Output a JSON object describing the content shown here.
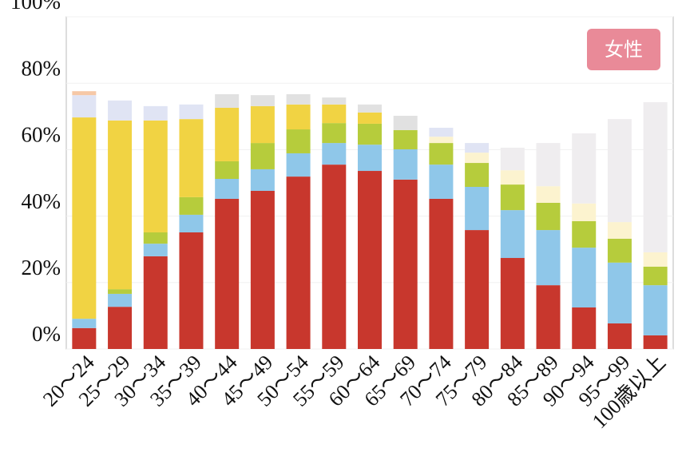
{
  "chart_data": {
    "type": "stacked_bar",
    "annotation": "女性",
    "categories": [
      "20～24",
      "25～29",
      "30～34",
      "35～39",
      "40～44",
      "45～49",
      "50～54",
      "55～59",
      "60～64",
      "65～69",
      "70～74",
      "75～79",
      "80～84",
      "85～89",
      "90～94",
      "95～99",
      "100歳以上"
    ],
    "series": [
      {
        "color": "#c8372d",
        "values": [
          6.3,
          12.7,
          27.9,
          35.1,
          45.2,
          47.6,
          51.9,
          55.5,
          53.6,
          51.0,
          45.2,
          35.8,
          27.4,
          19.2,
          12.5,
          7.7,
          4.1
        ]
      },
      {
        "color": "#8fc7e9",
        "values": [
          2.8,
          3.9,
          3.8,
          5.3,
          6.0,
          6.5,
          7.0,
          6.5,
          7.9,
          9.1,
          10.3,
          13.0,
          14.4,
          16.6,
          18.0,
          18.3,
          15.1
        ]
      },
      {
        "color": "#b6cc3c",
        "values": [
          null,
          1.4,
          3.4,
          5.3,
          5.3,
          7.9,
          7.2,
          6.0,
          6.3,
          5.8,
          6.5,
          7.2,
          7.7,
          8.2,
          8.0,
          7.2,
          5.6
        ]
      },
      {
        "color": "#f1d343",
        "values": [
          60.6,
          50.8,
          33.7,
          23.5,
          16.1,
          11.1,
          7.5,
          5.6,
          3.4,
          null,
          null,
          null,
          null,
          null,
          null,
          null,
          null
        ]
      },
      {
        "color": "#fcf3cf",
        "values": [
          null,
          null,
          null,
          null,
          null,
          null,
          null,
          null,
          null,
          null,
          1.9,
          3.1,
          4.3,
          5.0,
          5.3,
          5.0,
          4.3
        ]
      },
      {
        "color": "#e0e4f4",
        "values": [
          6.7,
          6.0,
          4.3,
          4.4,
          null,
          null,
          null,
          null,
          null,
          null,
          2.7,
          2.9,
          null,
          null,
          null,
          null,
          null
        ]
      },
      {
        "color": "#e1e1e1",
        "values": [
          null,
          null,
          null,
          null,
          4.1,
          3.3,
          3.1,
          2.1,
          2.4,
          4.3,
          null,
          null,
          null,
          null,
          null,
          null,
          null
        ]
      },
      {
        "color": "#efedef",
        "values": [
          null,
          null,
          null,
          null,
          null,
          null,
          null,
          null,
          null,
          null,
          null,
          null,
          6.8,
          13.0,
          21.1,
          31.0,
          45.2
        ]
      },
      {
        "color": "#f6c8a6",
        "values": [
          1.2,
          null,
          null,
          null,
          null,
          null,
          null,
          null,
          null,
          null,
          null,
          null,
          null,
          null,
          null,
          null,
          null
        ]
      }
    ],
    "ylim": [
      0,
      100
    ],
    "yticks": [
      {
        "value": 0,
        "label": "0%"
      },
      {
        "value": 20,
        "label": "20%"
      },
      {
        "value": 40,
        "label": "40%"
      },
      {
        "value": 60,
        "label": "60%"
      },
      {
        "value": 80,
        "label": "80%"
      },
      {
        "value": 100,
        "label": "100%"
      }
    ],
    "grid": true
  }
}
